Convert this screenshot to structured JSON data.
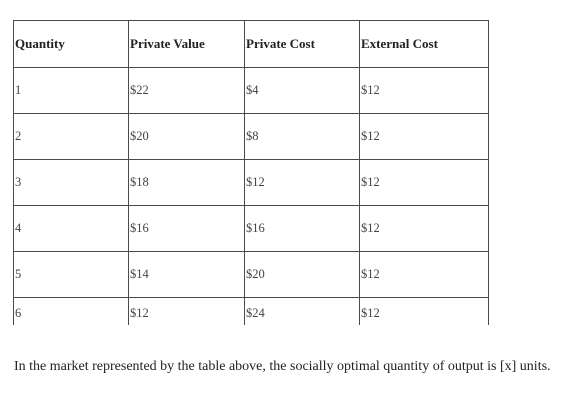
{
  "table": {
    "headers": [
      "Quantity",
      "Private Value",
      "Private Cost",
      "External Cost"
    ],
    "rows": [
      [
        "1",
        "$22",
        "$4",
        "$12"
      ],
      [
        "2",
        "$20",
        "$8",
        "$12"
      ],
      [
        "3",
        "$18",
        "$12",
        "$12"
      ],
      [
        "4",
        "$16",
        "$16",
        "$12"
      ],
      [
        "5",
        "$14",
        "$20",
        "$12"
      ],
      [
        "6",
        "$12",
        "$24",
        "$12"
      ]
    ]
  },
  "question": {
    "text": "In the market represented by the table above, the socially optimal quantity of output is [x] units."
  }
}
